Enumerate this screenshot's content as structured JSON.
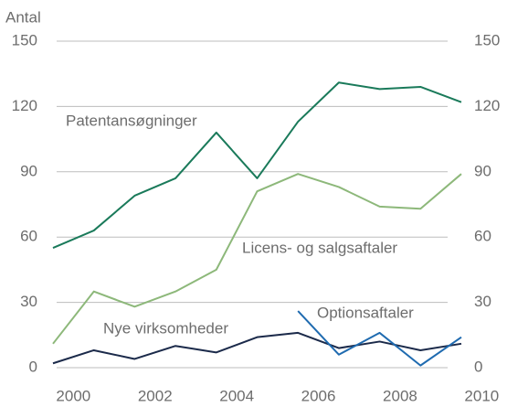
{
  "chart_data": {
    "type": "line",
    "y_axis_label": "Antal",
    "categories": [
      "2000",
      null,
      "2002",
      null,
      "2004",
      null,
      "2006",
      null,
      "2008",
      null,
      "2010"
    ],
    "series": [
      {
        "name": "Patentansøgninger",
        "color": "#1a7a5a",
        "values": [
          55,
          63,
          79,
          87,
          108,
          87,
          113,
          131,
          128,
          129,
          122
        ]
      },
      {
        "name": "Licens- og salgsaftaler",
        "color": "#8db87a",
        "values": [
          11,
          35,
          28,
          35,
          45,
          81,
          89,
          83,
          74,
          73,
          89
        ]
      },
      {
        "name": "Nye virksomheder",
        "color": "#1b2a4a",
        "values": [
          2,
          8,
          4,
          10,
          7,
          14,
          16,
          9,
          12,
          8,
          11
        ]
      },
      {
        "name": "Optionsaftaler",
        "color": "#1f6bb0",
        "values": [
          null,
          null,
          null,
          null,
          null,
          null,
          26,
          6,
          16,
          1,
          14
        ]
      }
    ],
    "ylim": [
      0,
      150
    ],
    "yticks": [
      0,
      30,
      60,
      90,
      120,
      150
    ],
    "y2lim": [
      0,
      150
    ],
    "y2ticks": [
      0,
      30,
      60,
      90,
      120,
      150
    ],
    "grid": true
  }
}
